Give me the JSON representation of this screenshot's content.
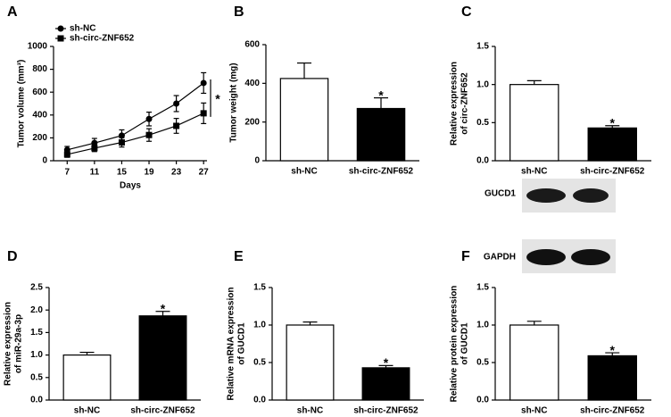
{
  "chart_data": [
    {
      "type": "line",
      "panel_label": "A",
      "ylabel": [
        "Tumor volume (mm³)"
      ],
      "xlabel": "Days",
      "x": [
        7,
        11,
        15,
        19,
        23,
        27
      ],
      "xlim": [
        5,
        27.5
      ],
      "xticks": [
        7,
        11,
        15,
        19,
        23,
        27
      ],
      "ylim": [
        0,
        1000
      ],
      "yticks": [
        0,
        200,
        400,
        600,
        800,
        1000
      ],
      "series": [
        {
          "name": "sh-NC",
          "color": "#000000",
          "marker": "circle",
          "values": [
            95,
            155,
            220,
            365,
            500,
            680
          ],
          "errors": [
            30,
            40,
            50,
            60,
            70,
            90
          ]
        },
        {
          "name": "sh-circ-ZNF652",
          "color": "#000000",
          "marker": "square",
          "values": [
            55,
            110,
            160,
            225,
            305,
            415
          ],
          "errors": [
            25,
            30,
            40,
            55,
            65,
            90
          ]
        }
      ],
      "annotation": "*"
    },
    {
      "type": "bar",
      "panel_label": "B",
      "ylabel": [
        "Tumor weight (mg)"
      ],
      "categories": [
        "sh-NC",
        "sh-circ-ZNF652"
      ],
      "values": [
        425,
        270
      ],
      "errors": [
        80,
        55
      ],
      "colors": [
        "#ffffff",
        "#000000"
      ],
      "ylim": [
        0,
        600
      ],
      "yticks": [
        0,
        200,
        400,
        600
      ],
      "annotation": "*"
    },
    {
      "type": "bar",
      "panel_label": "C",
      "ylabel": [
        "Relative expression",
        "of circ-ZNF652"
      ],
      "categories": [
        "sh-NC",
        "sh-circ-ZNF652"
      ],
      "values": [
        1.0,
        0.43
      ],
      "errors": [
        0.05,
        0.03
      ],
      "colors": [
        "#ffffff",
        "#000000"
      ],
      "ylim": [
        0,
        1.5
      ],
      "yticks": [
        {
          "value": 0,
          "label": "0.0"
        },
        {
          "value": 0.5,
          "label": "0.5"
        },
        {
          "value": 1,
          "label": "1.0"
        },
        {
          "value": 1.5,
          "label": "1.5"
        }
      ],
      "annotation": "*"
    },
    {
      "type": "bar",
      "panel_label": "D",
      "ylabel": [
        "Relative expression",
        "of miR-29a-3p"
      ],
      "categories": [
        "sh-NC",
        "sh-circ-ZNF652"
      ],
      "values": [
        1.0,
        1.87
      ],
      "errors": [
        0.06,
        0.1
      ],
      "colors": [
        "#ffffff",
        "#000000"
      ],
      "ylim": [
        0,
        2.5
      ],
      "yticks": [
        {
          "value": 0,
          "label": "0.0"
        },
        {
          "value": 0.5,
          "label": "0.5"
        },
        {
          "value": 1,
          "label": "1.0"
        },
        {
          "value": 1.5,
          "label": "1.5"
        },
        {
          "value": 2,
          "label": "2.0"
        },
        {
          "value": 2.5,
          "label": "2.5"
        }
      ],
      "annotation": "*"
    },
    {
      "type": "bar",
      "panel_label": "E",
      "ylabel": [
        "Relative mRNA expression",
        "of GUCD1"
      ],
      "categories": [
        "sh-NC",
        "sh-circ-ZNF652"
      ],
      "values": [
        1.0,
        0.43
      ],
      "errors": [
        0.04,
        0.03
      ],
      "colors": [
        "#ffffff",
        "#000000"
      ],
      "ylim": [
        0,
        1.5
      ],
      "yticks": [
        {
          "value": 0,
          "label": "0.0"
        },
        {
          "value": 0.5,
          "label": "0.5"
        },
        {
          "value": 1,
          "label": "1.0"
        },
        {
          "value": 1.5,
          "label": "1.5"
        }
      ],
      "annotation": "*"
    },
    {
      "type": "bar",
      "panel_label": "F",
      "ylabel": [
        "Relative protein expression",
        "of GUCD1"
      ],
      "categories": [
        "sh-NC",
        "sh-circ-ZNF652"
      ],
      "values": [
        1.0,
        0.59
      ],
      "errors": [
        0.05,
        0.04
      ],
      "colors": [
        "#ffffff",
        "#000000"
      ],
      "ylim": [
        0,
        1.5
      ],
      "yticks": [
        {
          "value": 0,
          "label": "0.0"
        },
        {
          "value": 0.5,
          "label": "0.5"
        },
        {
          "value": 1,
          "label": "1.0"
        },
        {
          "value": 1.5,
          "label": "1.5"
        }
      ],
      "annotation": "*",
      "blot_labels": [
        "GUCD1",
        "GAPDH"
      ]
    }
  ]
}
